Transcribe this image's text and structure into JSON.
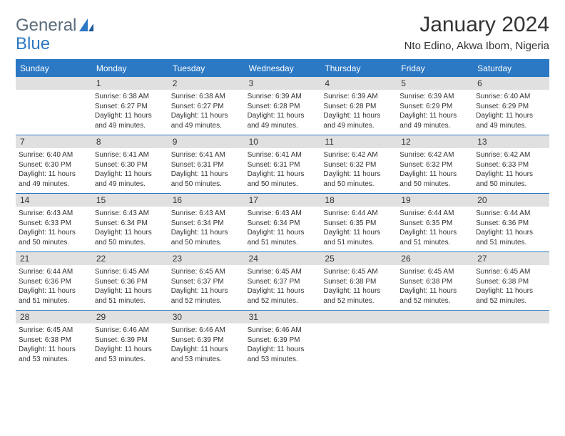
{
  "logo": {
    "word1": "General",
    "word2": "Blue"
  },
  "title": "January 2024",
  "location": "Nto Edino, Akwa Ibom, Nigeria",
  "colors": {
    "accent": "#2b78c4",
    "daynum_bg": "#e0e0e0",
    "text": "#333333",
    "dow_text": "#ffffff",
    "body_bg": "#ffffff"
  },
  "dow": [
    "Sunday",
    "Monday",
    "Tuesday",
    "Wednesday",
    "Thursday",
    "Friday",
    "Saturday"
  ],
  "weeks": [
    [
      {
        "num": "",
        "sunrise": "",
        "sunset": "",
        "daylight": ""
      },
      {
        "num": "1",
        "sunrise": "Sunrise: 6:38 AM",
        "sunset": "Sunset: 6:27 PM",
        "daylight": "Daylight: 11 hours and 49 minutes."
      },
      {
        "num": "2",
        "sunrise": "Sunrise: 6:38 AM",
        "sunset": "Sunset: 6:27 PM",
        "daylight": "Daylight: 11 hours and 49 minutes."
      },
      {
        "num": "3",
        "sunrise": "Sunrise: 6:39 AM",
        "sunset": "Sunset: 6:28 PM",
        "daylight": "Daylight: 11 hours and 49 minutes."
      },
      {
        "num": "4",
        "sunrise": "Sunrise: 6:39 AM",
        "sunset": "Sunset: 6:28 PM",
        "daylight": "Daylight: 11 hours and 49 minutes."
      },
      {
        "num": "5",
        "sunrise": "Sunrise: 6:39 AM",
        "sunset": "Sunset: 6:29 PM",
        "daylight": "Daylight: 11 hours and 49 minutes."
      },
      {
        "num": "6",
        "sunrise": "Sunrise: 6:40 AM",
        "sunset": "Sunset: 6:29 PM",
        "daylight": "Daylight: 11 hours and 49 minutes."
      }
    ],
    [
      {
        "num": "7",
        "sunrise": "Sunrise: 6:40 AM",
        "sunset": "Sunset: 6:30 PM",
        "daylight": "Daylight: 11 hours and 49 minutes."
      },
      {
        "num": "8",
        "sunrise": "Sunrise: 6:41 AM",
        "sunset": "Sunset: 6:30 PM",
        "daylight": "Daylight: 11 hours and 49 minutes."
      },
      {
        "num": "9",
        "sunrise": "Sunrise: 6:41 AM",
        "sunset": "Sunset: 6:31 PM",
        "daylight": "Daylight: 11 hours and 50 minutes."
      },
      {
        "num": "10",
        "sunrise": "Sunrise: 6:41 AM",
        "sunset": "Sunset: 6:31 PM",
        "daylight": "Daylight: 11 hours and 50 minutes."
      },
      {
        "num": "11",
        "sunrise": "Sunrise: 6:42 AM",
        "sunset": "Sunset: 6:32 PM",
        "daylight": "Daylight: 11 hours and 50 minutes."
      },
      {
        "num": "12",
        "sunrise": "Sunrise: 6:42 AM",
        "sunset": "Sunset: 6:32 PM",
        "daylight": "Daylight: 11 hours and 50 minutes."
      },
      {
        "num": "13",
        "sunrise": "Sunrise: 6:42 AM",
        "sunset": "Sunset: 6:33 PM",
        "daylight": "Daylight: 11 hours and 50 minutes."
      }
    ],
    [
      {
        "num": "14",
        "sunrise": "Sunrise: 6:43 AM",
        "sunset": "Sunset: 6:33 PM",
        "daylight": "Daylight: 11 hours and 50 minutes."
      },
      {
        "num": "15",
        "sunrise": "Sunrise: 6:43 AM",
        "sunset": "Sunset: 6:34 PM",
        "daylight": "Daylight: 11 hours and 50 minutes."
      },
      {
        "num": "16",
        "sunrise": "Sunrise: 6:43 AM",
        "sunset": "Sunset: 6:34 PM",
        "daylight": "Daylight: 11 hours and 50 minutes."
      },
      {
        "num": "17",
        "sunrise": "Sunrise: 6:43 AM",
        "sunset": "Sunset: 6:34 PM",
        "daylight": "Daylight: 11 hours and 51 minutes."
      },
      {
        "num": "18",
        "sunrise": "Sunrise: 6:44 AM",
        "sunset": "Sunset: 6:35 PM",
        "daylight": "Daylight: 11 hours and 51 minutes."
      },
      {
        "num": "19",
        "sunrise": "Sunrise: 6:44 AM",
        "sunset": "Sunset: 6:35 PM",
        "daylight": "Daylight: 11 hours and 51 minutes."
      },
      {
        "num": "20",
        "sunrise": "Sunrise: 6:44 AM",
        "sunset": "Sunset: 6:36 PM",
        "daylight": "Daylight: 11 hours and 51 minutes."
      }
    ],
    [
      {
        "num": "21",
        "sunrise": "Sunrise: 6:44 AM",
        "sunset": "Sunset: 6:36 PM",
        "daylight": "Daylight: 11 hours and 51 minutes."
      },
      {
        "num": "22",
        "sunrise": "Sunrise: 6:45 AM",
        "sunset": "Sunset: 6:36 PM",
        "daylight": "Daylight: 11 hours and 51 minutes."
      },
      {
        "num": "23",
        "sunrise": "Sunrise: 6:45 AM",
        "sunset": "Sunset: 6:37 PM",
        "daylight": "Daylight: 11 hours and 52 minutes."
      },
      {
        "num": "24",
        "sunrise": "Sunrise: 6:45 AM",
        "sunset": "Sunset: 6:37 PM",
        "daylight": "Daylight: 11 hours and 52 minutes."
      },
      {
        "num": "25",
        "sunrise": "Sunrise: 6:45 AM",
        "sunset": "Sunset: 6:38 PM",
        "daylight": "Daylight: 11 hours and 52 minutes."
      },
      {
        "num": "26",
        "sunrise": "Sunrise: 6:45 AM",
        "sunset": "Sunset: 6:38 PM",
        "daylight": "Daylight: 11 hours and 52 minutes."
      },
      {
        "num": "27",
        "sunrise": "Sunrise: 6:45 AM",
        "sunset": "Sunset: 6:38 PM",
        "daylight": "Daylight: 11 hours and 52 minutes."
      }
    ],
    [
      {
        "num": "28",
        "sunrise": "Sunrise: 6:45 AM",
        "sunset": "Sunset: 6:38 PM",
        "daylight": "Daylight: 11 hours and 53 minutes."
      },
      {
        "num": "29",
        "sunrise": "Sunrise: 6:46 AM",
        "sunset": "Sunset: 6:39 PM",
        "daylight": "Daylight: 11 hours and 53 minutes."
      },
      {
        "num": "30",
        "sunrise": "Sunrise: 6:46 AM",
        "sunset": "Sunset: 6:39 PM",
        "daylight": "Daylight: 11 hours and 53 minutes."
      },
      {
        "num": "31",
        "sunrise": "Sunrise: 6:46 AM",
        "sunset": "Sunset: 6:39 PM",
        "daylight": "Daylight: 11 hours and 53 minutes."
      },
      {
        "num": "",
        "sunrise": "",
        "sunset": "",
        "daylight": ""
      },
      {
        "num": "",
        "sunrise": "",
        "sunset": "",
        "daylight": ""
      },
      {
        "num": "",
        "sunrise": "",
        "sunset": "",
        "daylight": ""
      }
    ]
  ]
}
